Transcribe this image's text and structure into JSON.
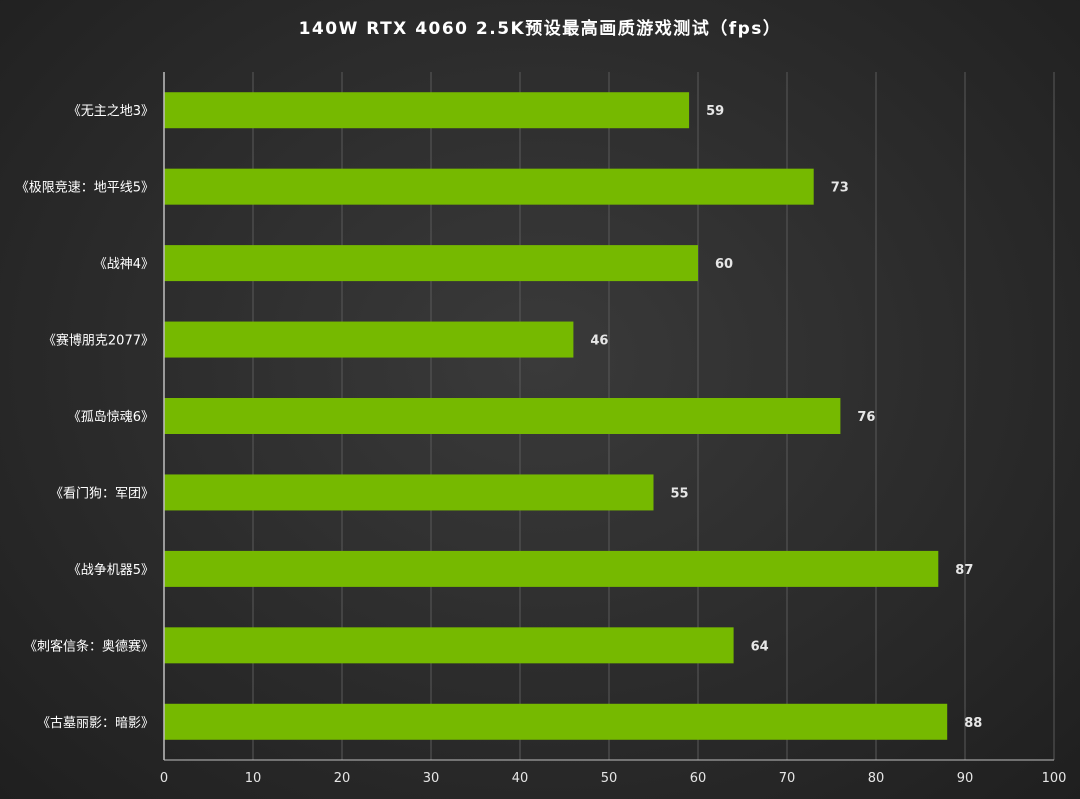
{
  "chart_data": {
    "type": "bar",
    "orientation": "horizontal",
    "title": "140W RTX 4060 2.5K预设最高画质游戏测试（fps）",
    "categories": [
      "《无主之地3》",
      "《极限竞速：地平线5》",
      "《战神4》",
      "《赛博朋克2077》",
      "《孤岛惊魂6》",
      "《看门狗：军团》",
      "《战争机器5》",
      "《刺客信条：奥德赛》",
      "《古墓丽影：暗影》"
    ],
    "values": [
      59,
      73,
      60,
      46,
      76,
      55,
      87,
      64,
      88
    ],
    "xlim": [
      0,
      100
    ],
    "xticks": [
      0,
      10,
      20,
      30,
      40,
      50,
      60,
      70,
      80,
      90,
      100
    ],
    "grid": true,
    "data_labels": true,
    "colors": {
      "bar": "#76b900",
      "grid": "#5a5a5a",
      "axis": "#bfbfbf",
      "background": "#2e2e2e"
    }
  }
}
